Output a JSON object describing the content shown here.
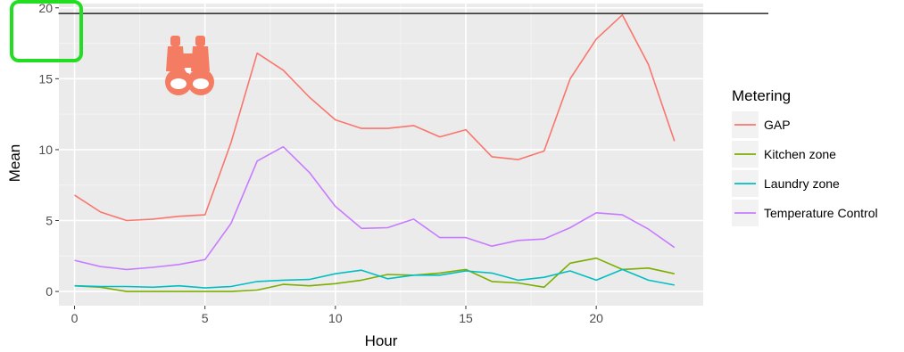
{
  "colors": {
    "panel_bg": "#EBEBEB",
    "grid_major": "#FFFFFF",
    "grid_minor": "#F4F4F4",
    "legend_key_bg": "#F2F2F2",
    "reference_line": "#000000",
    "highlight_box": "#22DD22",
    "binoculars_icon": "#F47C62"
  },
  "overlay": {
    "binoculars_icon": "binoculars-icon",
    "highlight": "green box around y tick 20"
  },
  "chart_data": {
    "type": "line",
    "title": "",
    "xlabel": "Hour",
    "ylabel": "Mean",
    "xlim": [
      -0.6,
      24.1
    ],
    "ylim": [
      -1.0,
      20.3
    ],
    "x_ticks": [
      0,
      5,
      10,
      15,
      20
    ],
    "y_ticks": [
      0,
      5,
      10,
      15,
      20
    ],
    "grid": true,
    "reference_line_y": 19.6,
    "legend": {
      "title": "Metering",
      "position": "right"
    },
    "x": [
      0,
      1,
      2,
      3,
      4,
      5,
      6,
      7,
      8,
      9,
      10,
      11,
      12,
      13,
      14,
      15,
      16,
      17,
      18,
      19,
      20,
      21,
      22,
      23
    ],
    "series": [
      {
        "name": "GAP",
        "color": "#F8766D",
        "values": [
          6.8,
          5.6,
          5.0,
          5.1,
          5.3,
          5.4,
          10.5,
          16.8,
          15.6,
          13.7,
          12.1,
          11.5,
          11.5,
          11.7,
          10.9,
          11.4,
          9.5,
          9.3,
          9.9,
          15.0,
          17.8,
          19.5,
          16.0,
          10.6
        ]
      },
      {
        "name": "Kitchen zone",
        "color": "#7CAE00",
        "values": [
          0.4,
          0.3,
          0.0,
          0.0,
          0.0,
          0.0,
          0.0,
          0.1,
          0.5,
          0.4,
          0.55,
          0.8,
          1.2,
          1.15,
          1.3,
          1.55,
          0.7,
          0.6,
          0.3,
          2.0,
          2.35,
          1.55,
          1.65,
          1.25
        ]
      },
      {
        "name": "Laundry zone",
        "color": "#00BFC4",
        "values": [
          0.4,
          0.35,
          0.35,
          0.3,
          0.4,
          0.25,
          0.35,
          0.7,
          0.8,
          0.85,
          1.25,
          1.5,
          0.9,
          1.15,
          1.15,
          1.45,
          1.3,
          0.8,
          1.0,
          1.45,
          0.8,
          1.55,
          0.8,
          0.45
        ]
      },
      {
        "name": "Temperature Control",
        "color": "#C77CFF",
        "values": [
          2.2,
          1.75,
          1.55,
          1.7,
          1.9,
          2.25,
          4.8,
          9.2,
          10.2,
          8.4,
          6.0,
          4.45,
          4.5,
          5.1,
          3.8,
          3.8,
          3.2,
          3.6,
          3.7,
          4.5,
          5.55,
          5.4,
          4.4,
          3.1
        ]
      }
    ]
  }
}
